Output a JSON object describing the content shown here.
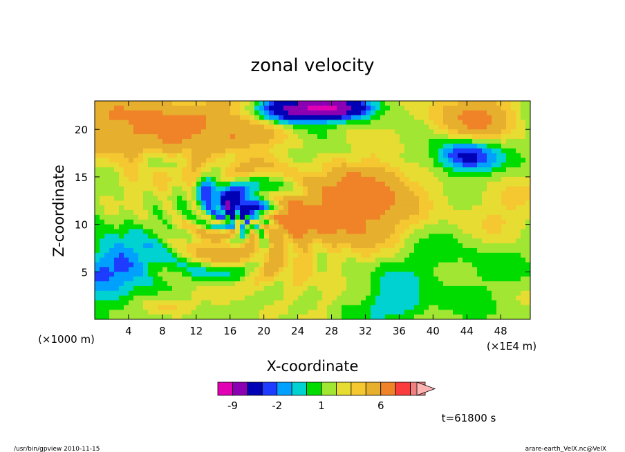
{
  "chart_data": {
    "type": "heatmap",
    "title": "zonal velocity",
    "xlabel": "X-coordinate",
    "ylabel": "Z-coordinate",
    "x_unit_label": "(×1E4 m)",
    "y_unit_label": "(×1000 m)",
    "xlim": [
      0,
      51.5
    ],
    "ylim": [
      0,
      23
    ],
    "x_ticks": [
      4,
      8,
      12,
      16,
      20,
      24,
      28,
      32,
      36,
      40,
      44,
      48
    ],
    "y_ticks": [
      5,
      10,
      15,
      20
    ],
    "time_label": "t=61800 s",
    "colorbar": {
      "levels": [
        -12,
        -9,
        -6,
        -3,
        -2,
        -1,
        0,
        1,
        2,
        3,
        4,
        6,
        9,
        12,
        15
      ],
      "tick_labels": [
        "-9",
        "-2",
        "1",
        "6"
      ],
      "tick_values": [
        -9,
        -2,
        1,
        6
      ],
      "colors": [
        "#e200b4",
        "#8c00b4",
        "#0000b4",
        "#1e3cff",
        "#00a0ff",
        "#00d2d2",
        "#00dc00",
        "#a0e632",
        "#e6dc32",
        "#f5c832",
        "#e6af2d",
        "#f08228",
        "#fa3c3c",
        "#f08080",
        "#ffb4b4"
      ]
    }
  },
  "footer": {
    "left": "/usr/bin/gpview   2010-11-15",
    "right": "arare-earth_VelX.nc@VelX"
  }
}
